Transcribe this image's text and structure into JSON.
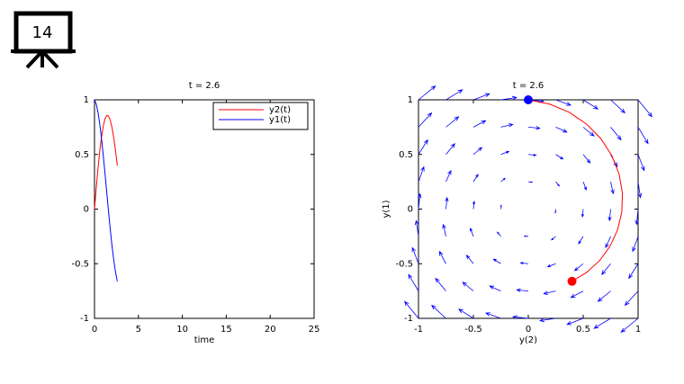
{
  "slide_number": "14",
  "chart_data": [
    {
      "type": "line",
      "title": "t = 2.6",
      "xlabel": "time",
      "x": [
        0,
        0.2,
        0.4,
        0.6,
        0.8,
        1.0,
        1.2,
        1.4,
        1.6,
        1.8,
        2.0,
        2.2,
        2.4,
        2.6
      ],
      "series": [
        {
          "name": "y2(t)",
          "color": "red",
          "values": [
            0,
            0.195,
            0.374,
            0.532,
            0.662,
            0.761,
            0.827,
            0.857,
            0.852,
            0.813,
            0.744,
            0.649,
            0.531,
            0.398
          ]
        },
        {
          "name": "y1(t)",
          "color": "blue",
          "values": [
            1,
            0.961,
            0.885,
            0.777,
            0.643,
            0.489,
            0.321,
            0.148,
            -0.025,
            -0.19,
            -0.341,
            -0.472,
            -0.58,
            -0.661
          ]
        }
      ],
      "xlim": [
        0,
        25
      ],
      "xticks": [
        0,
        5,
        10,
        15,
        20,
        25
      ],
      "ylim": [
        -1,
        1
      ],
      "yticks": [
        -1,
        -0.5,
        0,
        0.5,
        1
      ],
      "legend": "upper-right"
    },
    {
      "type": "quiver",
      "title": "t = 2.6",
      "xlabel": "y(2)",
      "ylabel": "y(1)",
      "xlim": [
        -1,
        1
      ],
      "xticks": [
        -1,
        -0.5,
        0,
        0.5,
        1
      ],
      "ylim": [
        -1,
        1
      ],
      "yticks": [
        -1,
        -0.5,
        0,
        0.5,
        1
      ],
      "trajectory": {
        "color": "red",
        "start_color": "blue",
        "end_color": "red",
        "x": [
          0,
          0.195,
          0.374,
          0.532,
          0.662,
          0.761,
          0.827,
          0.857,
          0.852,
          0.813,
          0.744,
          0.649,
          0.531,
          0.398
        ],
        "y": [
          1,
          0.961,
          0.885,
          0.777,
          0.643,
          0.489,
          0.321,
          0.148,
          -0.025,
          -0.19,
          -0.341,
          -0.472,
          -0.58,
          -0.661
        ]
      },
      "quiver": {
        "color": "blue",
        "x": [
          -1,
          -0.75,
          -0.5,
          -0.25,
          0,
          0.25,
          0.5,
          0.75,
          1
        ],
        "y": [
          1,
          0.75,
          0.5,
          0.25,
          0,
          -0.25,
          -0.5,
          -0.75,
          -1
        ],
        "u": [
          [
            1.1,
            1.075,
            1.05,
            1.025,
            1,
            0.975,
            0.95,
            0.925,
            0.9
          ],
          [
            0.85,
            0.825,
            0.8,
            0.775,
            0.75,
            0.725,
            0.7,
            0.675,
            0.65
          ],
          [
            0.6,
            0.575,
            0.55,
            0.525,
            0.5,
            0.475,
            0.45,
            0.425,
            0.4
          ],
          [
            0.35,
            0.325,
            0.3,
            0.275,
            0.25,
            0.225,
            0.2,
            0.175,
            0.15
          ],
          [
            0.1,
            0.075,
            0.05,
            0.025,
            0,
            -0.025,
            -0.05,
            -0.075,
            -0.1
          ],
          [
            -0.15,
            -0.175,
            -0.2,
            -0.225,
            -0.25,
            -0.275,
            -0.3,
            -0.325,
            -0.35
          ],
          [
            -0.4,
            -0.425,
            -0.45,
            -0.475,
            -0.5,
            -0.525,
            -0.55,
            -0.575,
            -0.6
          ],
          [
            -0.65,
            -0.675,
            -0.7,
            -0.725,
            -0.75,
            -0.775,
            -0.8,
            -0.825,
            -0.85
          ],
          [
            -0.9,
            -0.925,
            -0.95,
            -0.975,
            -1,
            -1.025,
            -1.05,
            -1.075,
            -1.1
          ]
        ],
        "v": [
          [
            0.9,
            0.65,
            0.4,
            0.15,
            -0.1,
            -0.35,
            -0.6,
            -0.85,
            -1.1
          ],
          [
            0.925,
            0.675,
            0.425,
            0.175,
            -0.075,
            -0.325,
            -0.575,
            -0.825,
            -1.075
          ],
          [
            0.95,
            0.7,
            0.45,
            0.2,
            -0.05,
            -0.3,
            -0.55,
            -0.8,
            -1.05
          ],
          [
            0.975,
            0.725,
            0.475,
            0.225,
            -0.025,
            -0.275,
            -0.525,
            -0.775,
            -1.025
          ],
          [
            1,
            0.75,
            0.5,
            0.25,
            0,
            -0.25,
            -0.5,
            -0.75,
            -1
          ],
          [
            1.025,
            0.775,
            0.525,
            0.275,
            0.025,
            -0.225,
            -0.475,
            -0.725,
            -0.975
          ],
          [
            1.05,
            0.8,
            0.55,
            0.3,
            0.05,
            -0.2,
            -0.45,
            -0.7,
            -0.95
          ],
          [
            1.075,
            0.825,
            0.575,
            0.325,
            0.075,
            -0.175,
            -0.425,
            -0.675,
            -0.925
          ],
          [
            1.1,
            0.85,
            0.6,
            0.35,
            0.1,
            -0.15,
            -0.4,
            -0.65,
            -0.9
          ]
        ]
      }
    }
  ]
}
